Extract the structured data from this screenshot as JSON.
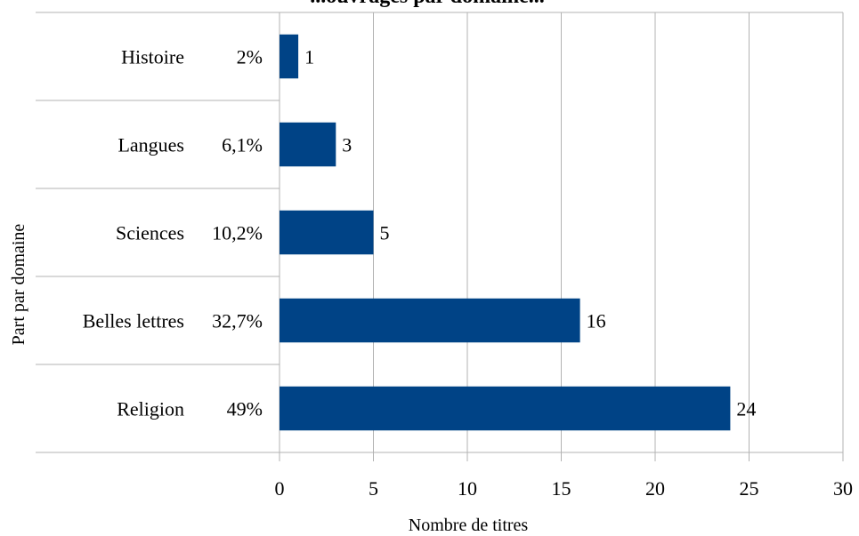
{
  "chart_data": {
    "type": "bar",
    "orientation": "horizontal",
    "title": "...ouvrages par domaine...",
    "xlabel": "Nombre de titres",
    "ylabel": "Part par domaine",
    "xlim": [
      0,
      30
    ],
    "x_ticks": [
      "0",
      "5",
      "10",
      "15",
      "20",
      "25",
      "30"
    ],
    "grid": true,
    "categories": [
      "Histoire",
      "Langues",
      "Sciences",
      "Belles lettres",
      "Religion"
    ],
    "shares": [
      "2%",
      "6,1%",
      "10,2%",
      "32,7%",
      "49%"
    ],
    "values": [
      1,
      3,
      5,
      16,
      24
    ],
    "bar_color": "#004386"
  }
}
